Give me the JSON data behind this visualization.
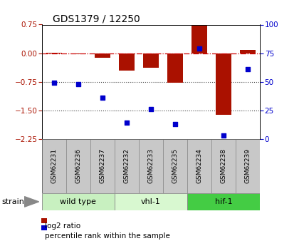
{
  "title": "GDS1379 / 12250",
  "samples": [
    "GSM62231",
    "GSM62236",
    "GSM62237",
    "GSM62232",
    "GSM62233",
    "GSM62235",
    "GSM62234",
    "GSM62238",
    "GSM62239"
  ],
  "log2_ratio": [
    0.02,
    -0.02,
    -0.12,
    -0.45,
    -0.38,
    -0.78,
    0.72,
    -1.62,
    0.08
  ],
  "percentile_rank": [
    49,
    48,
    36,
    14,
    26,
    13,
    79,
    3,
    61
  ],
  "groups": [
    {
      "label": "wild type",
      "start": 0,
      "end": 3,
      "color": "#c8f0c0"
    },
    {
      "label": "vhl-1",
      "start": 3,
      "end": 6,
      "color": "#d8f8d0"
    },
    {
      "label": "hif-1",
      "start": 6,
      "end": 9,
      "color": "#44cc44"
    }
  ],
  "ylim_left": [
    -2.25,
    0.75
  ],
  "ylim_right": [
    0,
    100
  ],
  "yticks_left": [
    0.75,
    0.0,
    -0.75,
    -1.5,
    -2.25
  ],
  "yticks_right": [
    100,
    75,
    50,
    25,
    0
  ],
  "bar_color": "#aa1100",
  "dot_color": "#0000cc",
  "hline_color": "#cc0000",
  "dotted_line_color": "#444444",
  "bg_color": "#ffffff",
  "sample_box_color": "#c8c8c8",
  "strain_label": "strain",
  "legend_log2": "log2 ratio",
  "legend_pct": "percentile rank within the sample",
  "title_fontsize": 10,
  "axis_fontsize": 7.5,
  "label_fontsize": 6.5,
  "group_fontsize": 8,
  "legend_fontsize": 7.5
}
